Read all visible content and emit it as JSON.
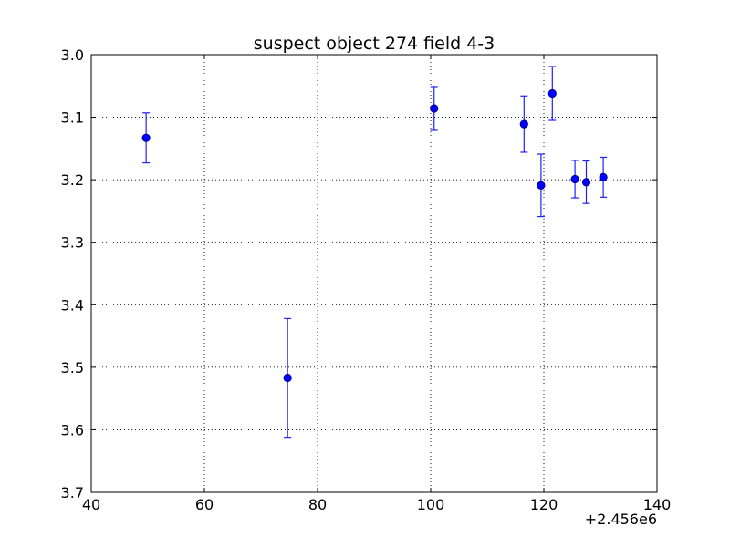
{
  "chart_data": {
    "type": "scatter",
    "title": "suspect object 274 field 4-3",
    "xlabel": "",
    "ylabel": "",
    "x_offset_label": "+2.456e6",
    "xlim": [
      40,
      140
    ],
    "ylim": [
      3.7,
      3.0
    ],
    "y_inverted": true,
    "grid": true,
    "x_ticks": [
      "40",
      "60",
      "80",
      "100",
      "120",
      "140"
    ],
    "y_ticks": [
      "3.0",
      "3.1",
      "3.2",
      "3.3",
      "3.4",
      "3.5",
      "3.6",
      "3.7"
    ],
    "marker_color": "#0000ff",
    "points": [
      {
        "x": 49.7,
        "y": 3.133,
        "err": 0.04
      },
      {
        "x": 74.7,
        "y": 3.517,
        "err": 0.095
      },
      {
        "x": 100.6,
        "y": 3.086,
        "err": 0.035
      },
      {
        "x": 116.5,
        "y": 3.111,
        "err": 0.045
      },
      {
        "x": 119.5,
        "y": 3.209,
        "err": 0.05
      },
      {
        "x": 121.5,
        "y": 3.062,
        "err": 0.043
      },
      {
        "x": 125.5,
        "y": 3.199,
        "err": 0.03
      },
      {
        "x": 127.5,
        "y": 3.204,
        "err": 0.034
      },
      {
        "x": 130.5,
        "y": 3.196,
        "err": 0.032
      }
    ]
  }
}
